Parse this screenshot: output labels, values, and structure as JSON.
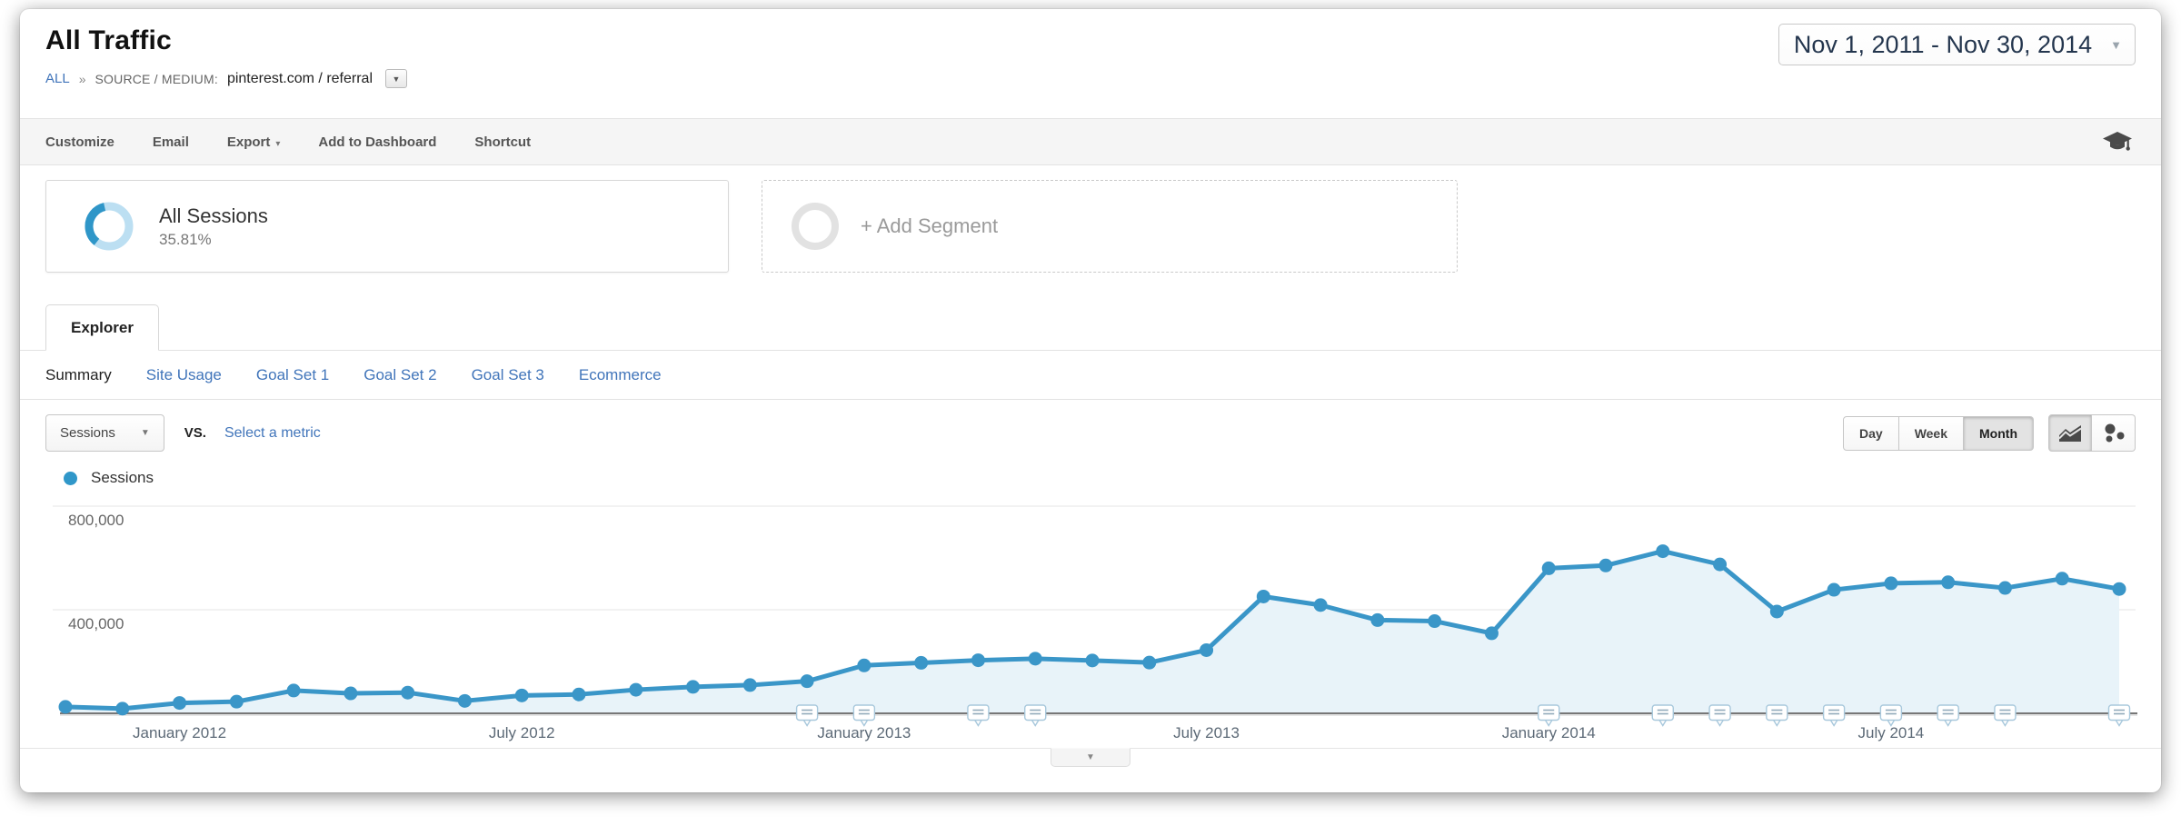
{
  "header": {
    "title": "All Traffic",
    "breadcrumb": {
      "all": "ALL",
      "separator": "»",
      "label": "SOURCE / MEDIUM:",
      "value": "pinterest.com / referral"
    },
    "date_range": "Nov 1, 2011 - Nov 30, 2014"
  },
  "toolbar": {
    "items": [
      {
        "label": "Customize",
        "caret": false
      },
      {
        "label": "Email",
        "caret": false
      },
      {
        "label": "Export",
        "caret": true
      },
      {
        "label": "Add to Dashboard",
        "caret": false
      },
      {
        "label": "Shortcut",
        "caret": false
      }
    ],
    "education_icon": "graduation-cap-icon"
  },
  "segments": {
    "all_sessions": {
      "label": "All Sessions",
      "value": "35.81%",
      "donut_percent": 35.81
    },
    "add_segment": {
      "label": "+ Add Segment"
    }
  },
  "tabs": {
    "explorer": "Explorer",
    "subtabs": [
      {
        "label": "Summary",
        "active": true
      },
      {
        "label": "Site Usage",
        "active": false
      },
      {
        "label": "Goal Set 1",
        "active": false
      },
      {
        "label": "Goal Set 2",
        "active": false
      },
      {
        "label": "Goal Set 3",
        "active": false
      },
      {
        "label": "Ecommerce",
        "active": false
      }
    ]
  },
  "controls": {
    "metric_select": "Sessions",
    "vs_label": "VS.",
    "select_metric_label": "Select a metric",
    "granularity": [
      {
        "label": "Day",
        "active": false
      },
      {
        "label": "Week",
        "active": false
      },
      {
        "label": "Month",
        "active": true
      }
    ],
    "chart_type_buttons": [
      "line-chart-icon",
      "motion-chart-icon"
    ]
  },
  "legend": {
    "label": "Sessions"
  },
  "glyphs": {
    "caret_down": "▾",
    "caret_down_small": "▼"
  },
  "colors": {
    "line": "#3a96c8",
    "area_fill": "#e8f3f9",
    "link": "#4175ba",
    "legend_dot": "#3097c9",
    "donut_ring": "#bcdff2",
    "donut_arc": "#2f96c8",
    "annotation_border": "#a8c8dc"
  },
  "chart_data": {
    "type": "line",
    "title": "Sessions by month",
    "xlabel": "",
    "ylabel": "",
    "grid": true,
    "legend_position": "top-left",
    "x": [
      "Nov 2011",
      "Dec 2011",
      "Jan 2012",
      "Feb 2012",
      "Mar 2012",
      "Apr 2012",
      "May 2012",
      "Jun 2012",
      "Jul 2012",
      "Aug 2012",
      "Sep 2012",
      "Oct 2012",
      "Nov 2012",
      "Dec 2012",
      "Jan 2013",
      "Feb 2013",
      "Mar 2013",
      "Apr 2013",
      "May 2013",
      "Jun 2013",
      "Jul 2013",
      "Aug 2013",
      "Sep 2013",
      "Oct 2013",
      "Nov 2013",
      "Dec 2013",
      "Jan 2014",
      "Feb 2014",
      "Mar 2014",
      "Apr 2014",
      "May 2014",
      "Jun 2014",
      "Jul 2014",
      "Aug 2014",
      "Sep 2014",
      "Oct 2014",
      "Nov 2014"
    ],
    "series": [
      {
        "name": "Sessions",
        "values": [
          25000,
          18000,
          40000,
          45000,
          88000,
          77000,
          80000,
          48000,
          69000,
          73000,
          91000,
          102000,
          109000,
          124000,
          185000,
          195000,
          205000,
          211000,
          204000,
          196000,
          244000,
          451000,
          418000,
          360000,
          356000,
          309000,
          560000,
          571000,
          626000,
          575000,
          393000,
          477000,
          502000,
          506000,
          484000,
          520000,
          480000
        ]
      }
    ],
    "ylim": [
      0,
      900000
    ],
    "y_ticks": [
      400000,
      800000
    ],
    "y_tick_labels": [
      "400,000",
      "800,000"
    ],
    "x_tick_indices": [
      2,
      8,
      14,
      20,
      26,
      32
    ],
    "x_tick_labels": [
      "January 2012",
      "July 2012",
      "January 2013",
      "July 2013",
      "January 2014",
      "July 2014"
    ],
    "annotation_indices": [
      13,
      14,
      16,
      17,
      26,
      28,
      29,
      30,
      31,
      32,
      33,
      34,
      36
    ]
  }
}
